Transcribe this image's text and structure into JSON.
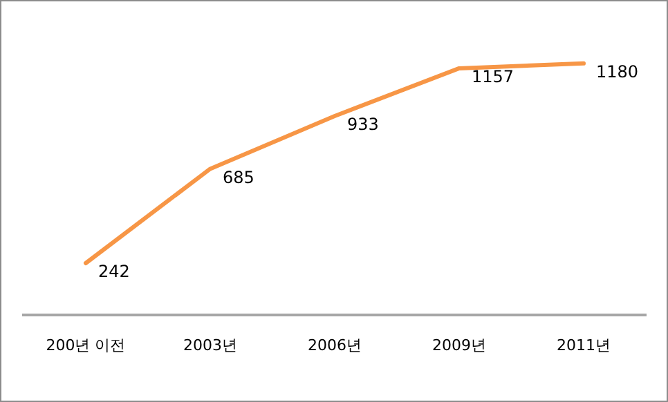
{
  "chart_data": {
    "type": "line",
    "categories": [
      "200년 이전",
      "2003년",
      "2006년",
      "2009년",
      "2011년"
    ],
    "series": [
      {
        "color": "#f79646",
        "values": [
          242,
          685,
          933,
          1157,
          1180
        ]
      }
    ],
    "tick_labels": "x",
    "grid": false,
    "legend": false,
    "marker": "none",
    "line_style": "solid",
    "data_labels": true
  }
}
